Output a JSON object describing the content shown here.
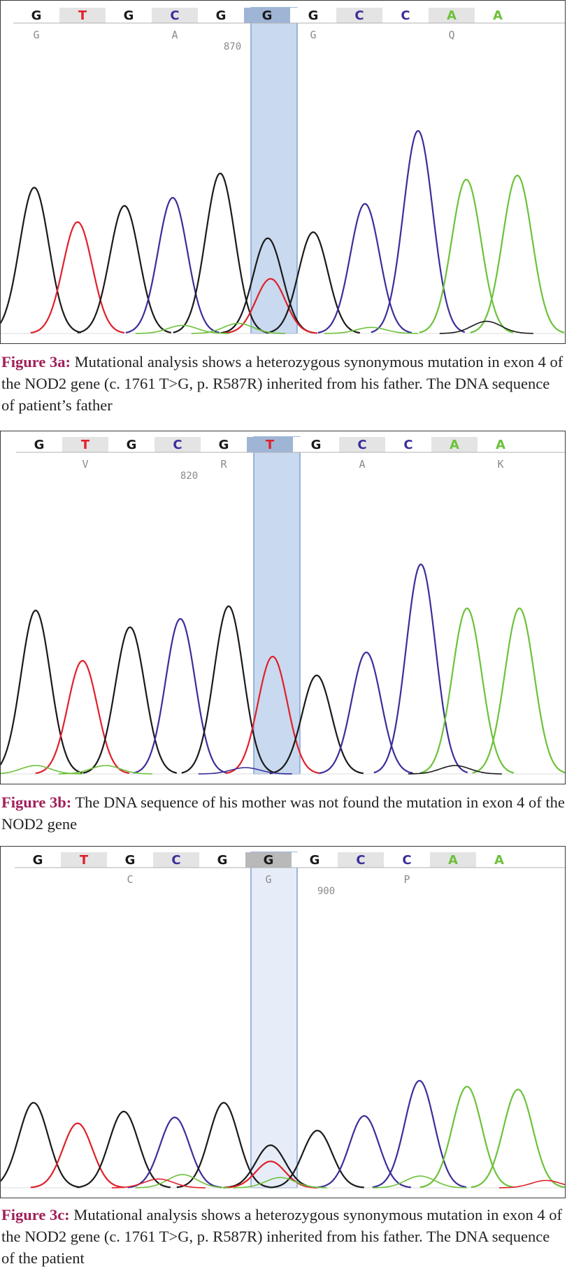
{
  "colors": {
    "G": "#1a1a1a",
    "T": "#e0202a",
    "C": "#3a2f9a",
    "A": "#6cc23a",
    "caption_label": "#a0205a",
    "highlight_fill": "#c9d9ef",
    "highlight_stroke": "#7fa2d1"
  },
  "panels": [
    {
      "id": "a",
      "bases": [
        "G",
        "T",
        "G",
        "C",
        "G",
        "G",
        "G",
        "C",
        "C",
        "A",
        "A"
      ],
      "amino_acids": [
        {
          "label": "G",
          "base_index": 0
        },
        {
          "label": "A",
          "base_index": 3
        },
        {
          "label": "G",
          "base_index": 6
        },
        {
          "label": "Q",
          "base_index": 9
        }
      ],
      "position_label": {
        "label": "870",
        "base_index": 4
      },
      "highlight_base_index": 5,
      "highlight_style": "dark",
      "peaks": [
        {
          "base": "G",
          "position": 48,
          "height": 0.72
        },
        {
          "base": "T",
          "position": 110,
          "height": 0.55
        },
        {
          "base": "G",
          "position": 177,
          "height": 0.63
        },
        {
          "base": "C",
          "position": 246,
          "height": 0.67
        },
        {
          "base": "G",
          "position": 314,
          "height": 0.79
        },
        {
          "base": "G",
          "position": 382,
          "height": 0.47
        },
        {
          "base": "T",
          "position": 386,
          "height": 0.27
        },
        {
          "base": "G",
          "position": 447,
          "height": 0.5
        },
        {
          "base": "C",
          "position": 521,
          "height": 0.64
        },
        {
          "base": "C",
          "position": 597,
          "height": 1.0
        },
        {
          "base": "A",
          "position": 666,
          "height": 0.76
        },
        {
          "base": "A",
          "position": 739,
          "height": 0.78
        },
        {
          "base": "G",
          "position": 695,
          "height": 0.06
        },
        {
          "base": "A",
          "position": 340,
          "height": 0.05
        },
        {
          "base": "A",
          "position": 260,
          "height": 0.04
        },
        {
          "base": "A",
          "position": 530,
          "height": 0.03
        }
      ],
      "caption_label": "Figure 3a:",
      "caption_text": "Mutational analysis shows a heterozygous synonymous mutation in exon 4 of the NOD2 gene (c. 1761 T>G, p. R587R) inherited from his father. The DNA sequence of patient’s father"
    },
    {
      "id": "b",
      "bases": [
        "G",
        "T",
        "G",
        "C",
        "G",
        "T",
        "G",
        "C",
        "C",
        "A",
        "A"
      ],
      "amino_acids": [
        {
          "label": "V",
          "base_index": 1
        },
        {
          "label": "R",
          "base_index": 4
        },
        {
          "label": "A",
          "base_index": 7
        },
        {
          "label": "K",
          "base_index": 10
        }
      ],
      "position_label": {
        "label": "820",
        "base_index": 3
      },
      "highlight_base_index": 5,
      "highlight_style": "dark",
      "peaks": [
        {
          "base": "G",
          "position": 50,
          "height": 0.78
        },
        {
          "base": "T",
          "position": 117,
          "height": 0.54
        },
        {
          "base": "G",
          "position": 185,
          "height": 0.7
        },
        {
          "base": "C",
          "position": 257,
          "height": 0.74
        },
        {
          "base": "G",
          "position": 326,
          "height": 0.8
        },
        {
          "base": "T",
          "position": 389,
          "height": 0.56
        },
        {
          "base": "G",
          "position": 452,
          "height": 0.47
        },
        {
          "base": "C",
          "position": 523,
          "height": 0.58
        },
        {
          "base": "C",
          "position": 601,
          "height": 1.0
        },
        {
          "base": "A",
          "position": 667,
          "height": 0.79
        },
        {
          "base": "A",
          "position": 742,
          "height": 0.79
        },
        {
          "base": "A",
          "position": 50,
          "height": 0.04
        },
        {
          "base": "A",
          "position": 150,
          "height": 0.04
        },
        {
          "base": "G",
          "position": 650,
          "height": 0.04
        },
        {
          "base": "C",
          "position": 350,
          "height": 0.03
        }
      ],
      "caption_label": "Figure 3b:",
      "caption_text": "The DNA sequence of his mother was not found the mutation in exon 4 of the NOD2 gene"
    },
    {
      "id": "c",
      "bases": [
        "G",
        "T",
        "G",
        "C",
        "G",
        "G",
        "G",
        "C",
        "C",
        "A",
        "A"
      ],
      "amino_acids": [
        {
          "label": "C",
          "base_index": 2
        },
        {
          "label": "G",
          "base_index": 5
        },
        {
          "label": "P",
          "base_index": 8
        }
      ],
      "position_label": {
        "label": "900",
        "base_index": 6
      },
      "highlight_base_index": 5,
      "highlight_style": "light",
      "peaks": [
        {
          "base": "G",
          "position": 47,
          "height": 0.58
        },
        {
          "base": "T",
          "position": 110,
          "height": 0.44
        },
        {
          "base": "G",
          "position": 176,
          "height": 0.52
        },
        {
          "base": "C",
          "position": 249,
          "height": 0.48
        },
        {
          "base": "G",
          "position": 319,
          "height": 0.58
        },
        {
          "base": "G",
          "position": 386,
          "height": 0.29
        },
        {
          "base": "T",
          "position": 386,
          "height": 0.18
        },
        {
          "base": "G",
          "position": 453,
          "height": 0.39
        },
        {
          "base": "C",
          "position": 520,
          "height": 0.49
        },
        {
          "base": "C",
          "position": 599,
          "height": 0.73
        },
        {
          "base": "A",
          "position": 667,
          "height": 0.69
        },
        {
          "base": "A",
          "position": 740,
          "height": 0.67
        },
        {
          "base": "A",
          "position": 260,
          "height": 0.09
        },
        {
          "base": "A",
          "position": 400,
          "height": 0.07
        },
        {
          "base": "T",
          "position": 226,
          "height": 0.06
        },
        {
          "base": "A",
          "position": 600,
          "height": 0.08
        },
        {
          "base": "T",
          "position": 780,
          "height": 0.05
        }
      ],
      "caption_label": "Figure 3c:",
      "caption_text": "Mutational analysis shows a heterozygous synonymous mutation in exon 4 of the NOD2 gene (c. 1761 T>G, p. R587R) inherited from his father. The DNA sequence of the patient"
    }
  ]
}
